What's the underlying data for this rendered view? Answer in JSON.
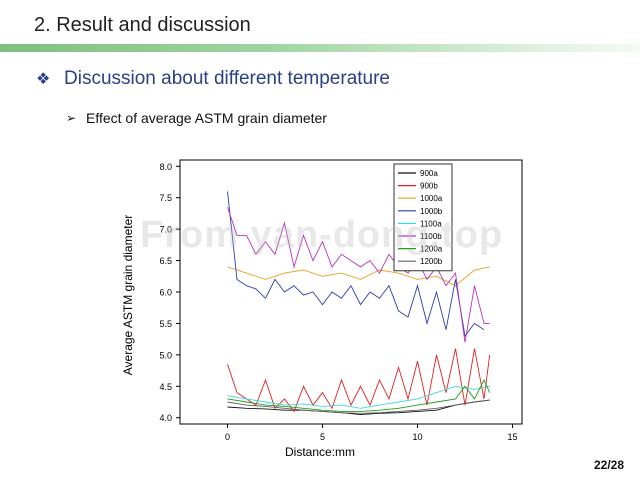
{
  "slide": {
    "title": "2. Result and discussion",
    "bullet": "Discussion about different temperature",
    "subbullet": "Effect of average ASTM grain diameter",
    "watermark": "From yan-dong.top",
    "page": "22/28"
  },
  "chart_data": {
    "type": "line",
    "xlabel": "Distance:mm",
    "ylabel": "Average ASTM grain diameter",
    "xlim": [
      -2.5,
      15.5
    ],
    "ylim": [
      3.9,
      8.1
    ],
    "xticks": [
      0,
      5,
      10,
      15
    ],
    "yticks": [
      4.0,
      4.5,
      5.0,
      5.5,
      6.0,
      6.5,
      7.0,
      7.5,
      8.0
    ],
    "legend_position": "top-right",
    "series": [
      {
        "name": "900a",
        "color": "#111111",
        "x": [
          0,
          1,
          2,
          3,
          4,
          5,
          6,
          7,
          8,
          9,
          10,
          11,
          12,
          13,
          13.8
        ],
        "y": [
          4.17,
          4.15,
          4.14,
          4.12,
          4.12,
          4.1,
          4.08,
          4.05,
          4.07,
          4.08,
          4.1,
          4.12,
          4.2,
          4.25,
          4.28
        ]
      },
      {
        "name": "900b",
        "color": "#e02020",
        "x": [
          0,
          0.5,
          1,
          1.5,
          2,
          2.5,
          3,
          3.5,
          4,
          4.5,
          5,
          5.5,
          6,
          6.5,
          7,
          7.5,
          8,
          8.5,
          9,
          9.5,
          10,
          10.5,
          11,
          11.5,
          12,
          12.5,
          13,
          13.5,
          13.8
        ],
        "y": [
          4.85,
          4.4,
          4.3,
          4.2,
          4.6,
          4.15,
          4.3,
          4.1,
          4.5,
          4.2,
          4.4,
          4.15,
          4.6,
          4.2,
          4.5,
          4.2,
          4.6,
          4.3,
          4.8,
          4.3,
          4.9,
          4.2,
          5.0,
          4.4,
          5.1,
          4.2,
          5.1,
          4.3,
          5.0
        ]
      },
      {
        "name": "1000a",
        "color": "#e8a020",
        "x": [
          0,
          1,
          2,
          3,
          4,
          5,
          6,
          7,
          8,
          9,
          10,
          11,
          12,
          13,
          13.8
        ],
        "y": [
          6.4,
          6.3,
          6.2,
          6.3,
          6.35,
          6.25,
          6.3,
          6.2,
          6.35,
          6.3,
          6.2,
          6.25,
          6.1,
          6.35,
          6.4
        ]
      },
      {
        "name": "1000b",
        "color": "#2c3fa8",
        "x": [
          0,
          0.5,
          1,
          1.5,
          2,
          2.5,
          3,
          3.5,
          4,
          4.5,
          5,
          5.5,
          6,
          6.5,
          7,
          7.5,
          8,
          8.5,
          9,
          9.5,
          10,
          10.5,
          11,
          11.5,
          12,
          12.5,
          13,
          13.5
        ],
        "y": [
          7.6,
          6.2,
          6.1,
          6.05,
          5.9,
          6.2,
          6.0,
          6.1,
          5.95,
          6.0,
          5.8,
          6.0,
          5.9,
          6.1,
          5.8,
          6.0,
          5.9,
          6.1,
          5.7,
          5.6,
          6.1,
          5.5,
          6.0,
          5.4,
          6.2,
          5.3,
          5.5,
          5.4
        ]
      },
      {
        "name": "1100a",
        "color": "#40d8d8",
        "x": [
          0,
          1,
          2,
          3,
          4,
          5,
          6,
          7,
          8,
          9,
          10,
          11,
          12,
          13,
          13.8
        ],
        "y": [
          4.35,
          4.3,
          4.25,
          4.2,
          4.22,
          4.18,
          4.2,
          4.15,
          4.2,
          4.25,
          4.3,
          4.4,
          4.5,
          4.45,
          4.5
        ]
      },
      {
        "name": "1100b",
        "color": "#c030c0",
        "x": [
          0,
          0.5,
          1,
          1.5,
          2,
          2.5,
          3,
          3.5,
          4,
          4.5,
          5,
          5.5,
          6,
          6.5,
          7,
          7.5,
          8,
          8.5,
          9,
          9.5,
          10,
          10.5,
          11,
          11.5,
          12,
          12.5,
          13,
          13.5,
          13.8
        ],
        "y": [
          7.35,
          6.9,
          6.9,
          6.6,
          6.8,
          6.6,
          7.1,
          6.4,
          6.9,
          6.5,
          6.8,
          6.4,
          6.6,
          6.5,
          6.4,
          6.5,
          6.3,
          6.6,
          6.4,
          6.3,
          6.5,
          6.2,
          6.4,
          6.1,
          6.3,
          5.2,
          6.1,
          5.5,
          5.5
        ]
      },
      {
        "name": "1200a",
        "color": "#20a020",
        "x": [
          0,
          1,
          2,
          3,
          4,
          5,
          6,
          7,
          8,
          9,
          10,
          11,
          12,
          12.5,
          13,
          13.5,
          13.8
        ],
        "y": [
          4.3,
          4.25,
          4.2,
          4.18,
          4.15,
          4.12,
          4.1,
          4.1,
          4.12,
          4.15,
          4.2,
          4.25,
          4.3,
          4.5,
          4.3,
          4.6,
          4.4
        ]
      },
      {
        "name": "1200b",
        "color": "#606060",
        "x": [
          0,
          1,
          2,
          3,
          4,
          5,
          6,
          7,
          8,
          9,
          10,
          11,
          12,
          13,
          13.8
        ],
        "y": [
          4.25,
          4.2,
          4.18,
          4.15,
          4.12,
          4.1,
          4.08,
          4.07,
          4.08,
          4.1,
          4.12,
          4.15,
          4.2,
          4.25,
          4.28
        ]
      }
    ]
  }
}
